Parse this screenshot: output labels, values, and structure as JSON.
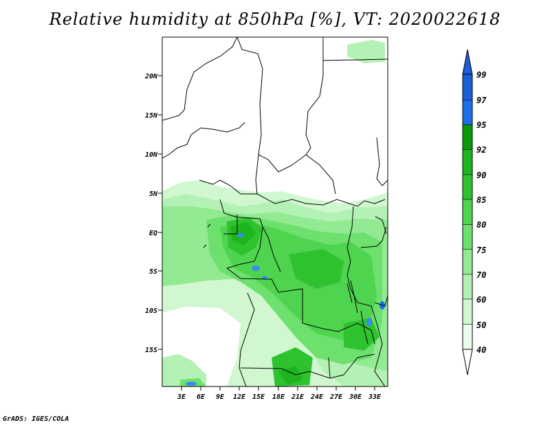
{
  "title": "Relative humidity at 850hPa [%], VT: 2020022618",
  "credit": "GrADS: IGES/COLA",
  "map": {
    "lat_labels": [
      "20N",
      "15N",
      "10N",
      "5N",
      "EQ",
      "5S",
      "10S",
      "15S"
    ],
    "lon_labels": [
      "3E",
      "6E",
      "9E",
      "12E",
      "15E",
      "18E",
      "21E",
      "24E",
      "27E",
      "30E",
      "33E"
    ]
  },
  "colorbar": {
    "labels": [
      "99",
      "97",
      "95",
      "92",
      "90",
      "85",
      "80",
      "75",
      "70",
      "60",
      "50",
      "40"
    ],
    "colors": [
      "#1c5fd6",
      "#1c70e6",
      "#3a8cf0",
      "#0a9a0a",
      "#1eb41e",
      "#2fc22f",
      "#4ed44e",
      "#6ee06e",
      "#92ea92",
      "#b4f1b4",
      "#d1f7d1",
      "#ebfdeb"
    ]
  }
}
